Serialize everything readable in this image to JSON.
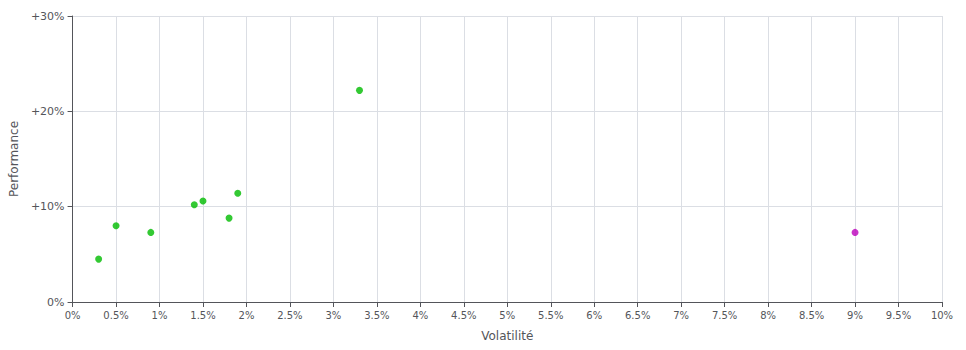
{
  "chart_data": {
    "type": "scatter",
    "xlabel": "Volatilité",
    "ylabel": "Performance",
    "series": [
      {
        "color": "#00bb00",
        "x": [
          0.003,
          0.005,
          0.009,
          0.014,
          0.015,
          0.018,
          0.019,
          0.033
        ],
        "values": [
          0.045,
          0.08,
          0.073,
          0.102,
          0.106,
          0.088,
          0.114,
          0.222
        ]
      },
      {
        "color": "#bb00bb",
        "x": [
          0.09
        ],
        "values": [
          0.073
        ]
      }
    ],
    "xlim": [
      0,
      0.1
    ],
    "ylim": [
      0,
      0.3
    ],
    "xticks": [
      {
        "value": 0.0,
        "label": "0%"
      },
      {
        "value": 0.005,
        "label": "0.5%"
      },
      {
        "value": 0.01,
        "label": "1%"
      },
      {
        "value": 0.015,
        "label": "1.5%"
      },
      {
        "value": 0.02,
        "label": "2%"
      },
      {
        "value": 0.025,
        "label": "2.5%"
      },
      {
        "value": 0.03,
        "label": "3%"
      },
      {
        "value": 0.035,
        "label": "3.5%"
      },
      {
        "value": 0.04,
        "label": "4%"
      },
      {
        "value": 0.045,
        "label": "4.5%"
      },
      {
        "value": 0.05,
        "label": "5%"
      },
      {
        "value": 0.055,
        "label": "5.5%"
      },
      {
        "value": 0.06,
        "label": "6%"
      },
      {
        "value": 0.065,
        "label": "6.5%"
      },
      {
        "value": 0.07,
        "label": "7%"
      },
      {
        "value": 0.075,
        "label": "7.5%"
      },
      {
        "value": 0.08,
        "label": "8%"
      },
      {
        "value": 0.085,
        "label": "8.5%"
      },
      {
        "value": 0.09,
        "label": "9%"
      },
      {
        "value": 0.095,
        "label": "9.5%"
      },
      {
        "value": 0.1,
        "label": "10%"
      }
    ],
    "yticks": [
      {
        "value": 0.0,
        "label": "0%"
      },
      {
        "value": 0.1,
        "label": "+10%"
      },
      {
        "value": 0.2,
        "label": "+20%"
      },
      {
        "value": 0.3,
        "label": "+30%"
      }
    ],
    "grid": true
  }
}
